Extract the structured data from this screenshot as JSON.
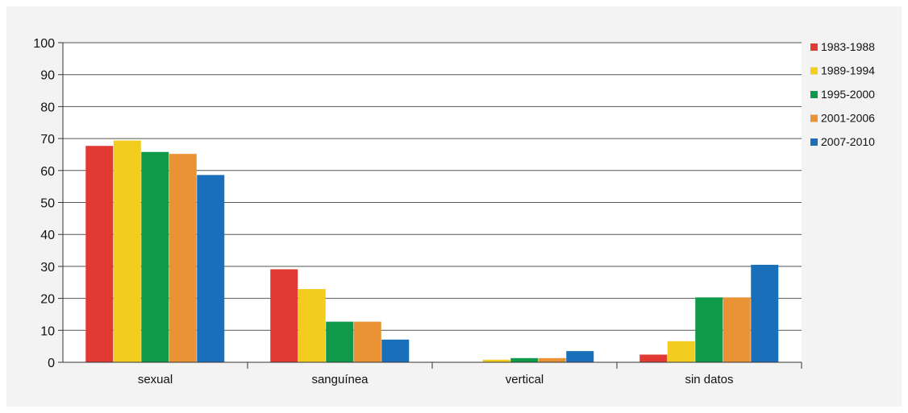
{
  "chart_data": {
    "type": "bar",
    "categories": [
      "sexual",
      "sanguínea",
      "vertical",
      "sin datos"
    ],
    "series": [
      {
        "name": "1983-1988",
        "color": "#e03a32",
        "values": [
          67.7,
          29.1,
          0,
          2.4
        ]
      },
      {
        "name": "1989-1994",
        "color": "#f2cc1f",
        "values": [
          69.4,
          22.9,
          0.8,
          6.6
        ]
      },
      {
        "name": "1995-2000",
        "color": "#0f9a4a",
        "values": [
          65.8,
          12.7,
          1.3,
          20.3
        ]
      },
      {
        "name": "2001-2006",
        "color": "#ea9335",
        "values": [
          65.2,
          12.7,
          1.3,
          20.3
        ]
      },
      {
        "name": "2007-2010",
        "color": "#1a6fba",
        "values": [
          58.6,
          7.1,
          3.5,
          30.5
        ]
      }
    ],
    "ylim": [
      0,
      100
    ],
    "yticks": [
      0,
      10,
      20,
      30,
      40,
      50,
      60,
      70,
      80,
      90,
      100
    ],
    "title": "",
    "xlabel": "",
    "ylabel": "",
    "grid": true,
    "legend_position": "right"
  }
}
